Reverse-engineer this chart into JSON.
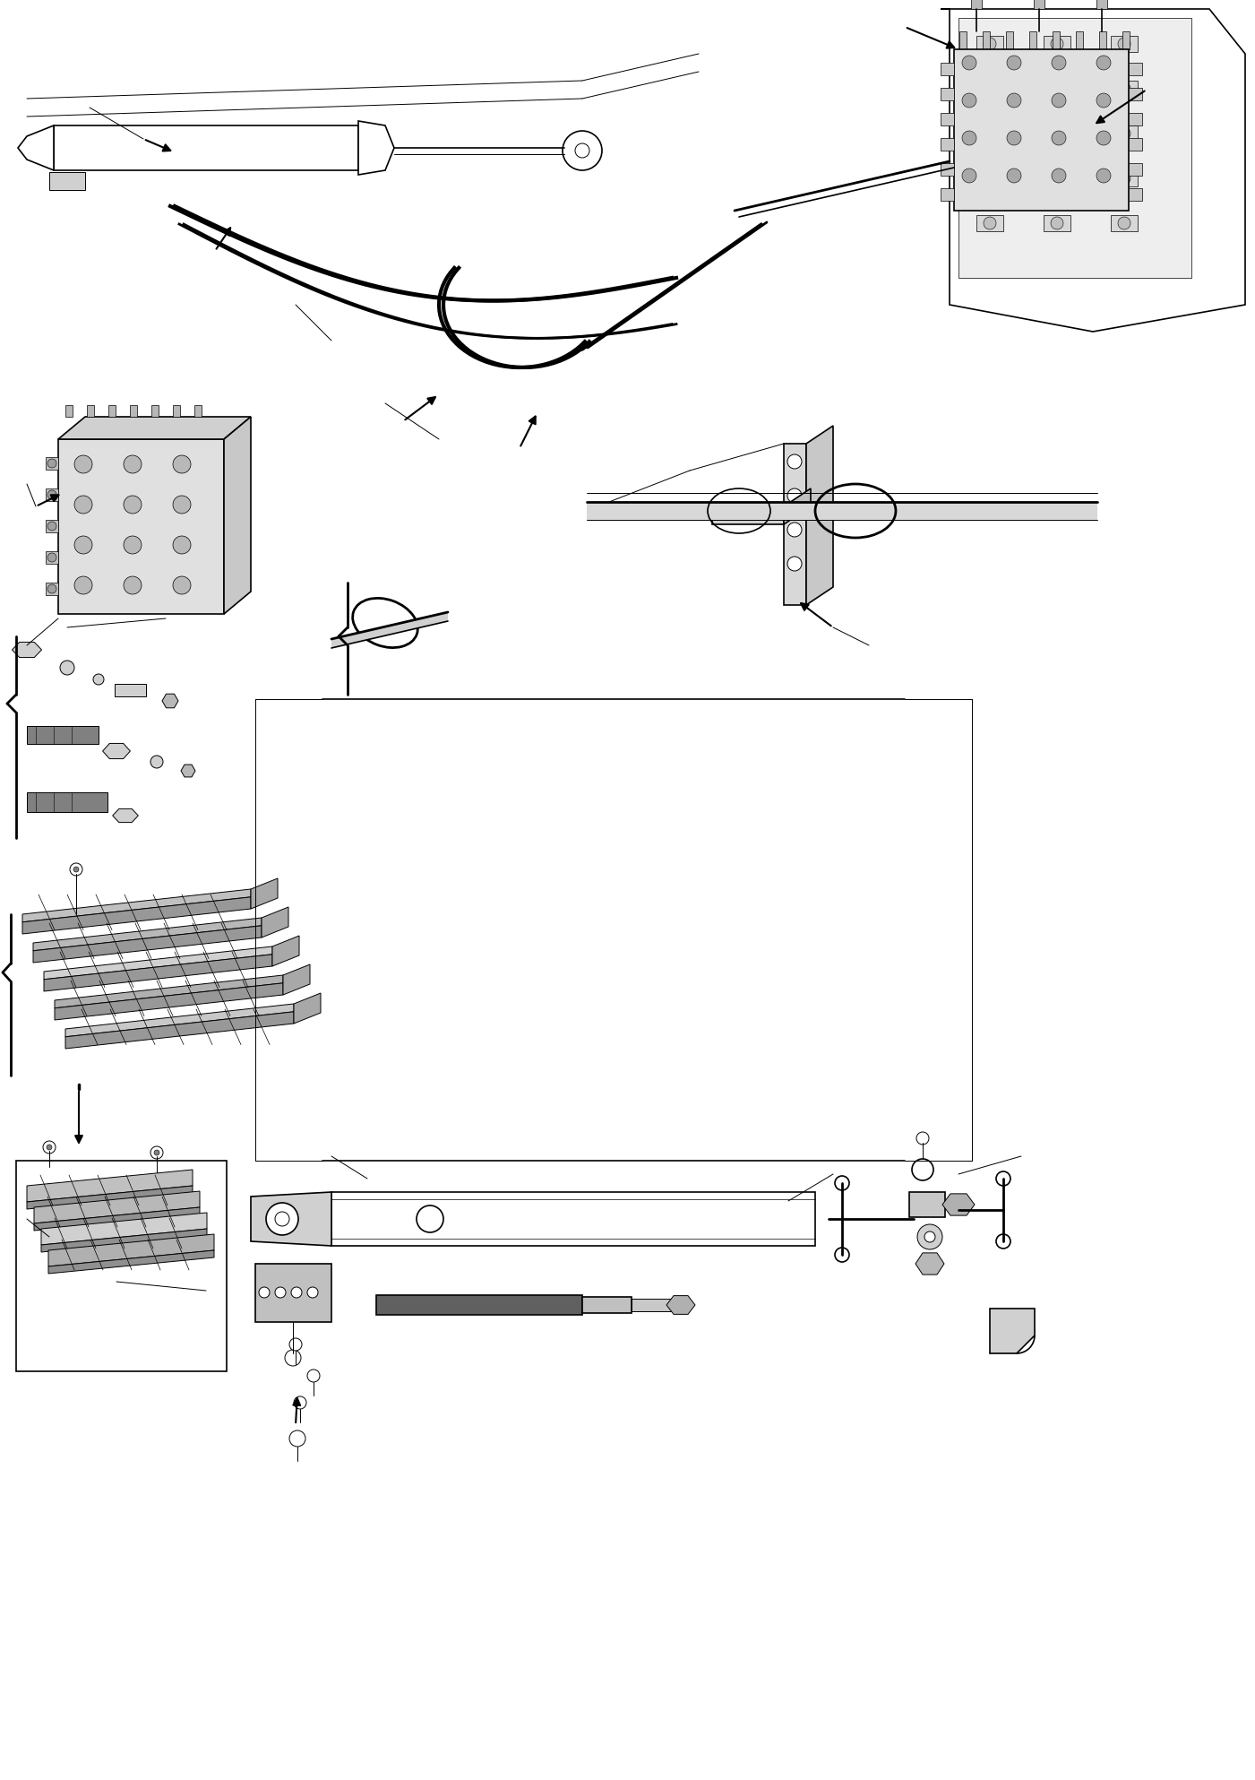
{
  "title": "",
  "background_color": "#ffffff",
  "figure_width": 14.01,
  "figure_height": 19.86,
  "dpi": 100,
  "line_color": "#000000",
  "fill_light": "#d0d0d0",
  "fill_medium": "#b0b0b0",
  "fill_dark": "#606060"
}
